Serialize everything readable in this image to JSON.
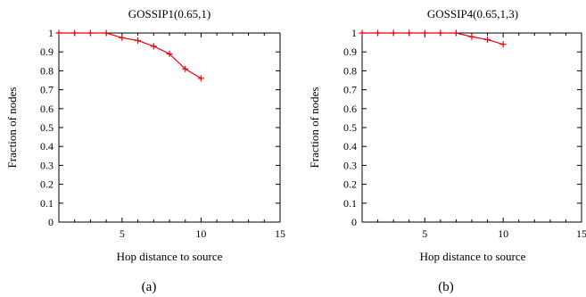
{
  "chart_data": [
    {
      "type": "line",
      "title": "GOSSIP1(0.65,1)",
      "caption": "(a)",
      "xlabel": "Hop distance to source",
      "ylabel": "Fraction of nodes",
      "xlim": [
        1,
        15
      ],
      "ylim": [
        0,
        1
      ],
      "xticks": [
        5,
        10,
        15
      ],
      "xtick_labels": [
        "5",
        "10",
        "15"
      ],
      "yticks": [
        0,
        0.1,
        0.2,
        0.3,
        0.4,
        0.5,
        0.6,
        0.7,
        0.8,
        0.9,
        1
      ],
      "ytick_labels": [
        "0",
        "0.1",
        "0.2",
        "0.3",
        "0.4",
        "0.5",
        "0.6",
        "0.7",
        "0.8",
        "0.9",
        "1"
      ],
      "grid": false,
      "line_color": "#e8000b",
      "series": [
        {
          "x": [
            1,
            2,
            3,
            4,
            5,
            6,
            7,
            8,
            9,
            10
          ],
          "values": [
            1.0,
            1.0,
            1.0,
            1.0,
            0.975,
            0.96,
            0.93,
            0.89,
            0.81,
            0.76
          ]
        }
      ]
    },
    {
      "type": "line",
      "title": "GOSSIP4(0.65,1,3)",
      "caption": "(b)",
      "xlabel": "Hop distance to source",
      "ylabel": "Fraction of nodes",
      "xlim": [
        1,
        15
      ],
      "ylim": [
        0,
        1
      ],
      "xticks": [
        5,
        10,
        15
      ],
      "xtick_labels": [
        "5",
        "10",
        "15"
      ],
      "yticks": [
        0,
        0.1,
        0.2,
        0.3,
        0.4,
        0.5,
        0.6,
        0.7,
        0.8,
        0.9,
        1
      ],
      "ytick_labels": [
        "0",
        "0.1",
        "0.2",
        "0.3",
        "0.4",
        "0.5",
        "0.6",
        "0.7",
        "0.8",
        "0.9",
        "1"
      ],
      "grid": false,
      "line_color": "#e8000b",
      "series": [
        {
          "x": [
            1,
            2,
            3,
            4,
            5,
            6,
            7,
            8,
            9,
            10
          ],
          "values": [
            1.0,
            1.0,
            1.0,
            1.0,
            1.0,
            1.0,
            1.0,
            0.98,
            0.965,
            0.94
          ]
        }
      ]
    }
  ]
}
